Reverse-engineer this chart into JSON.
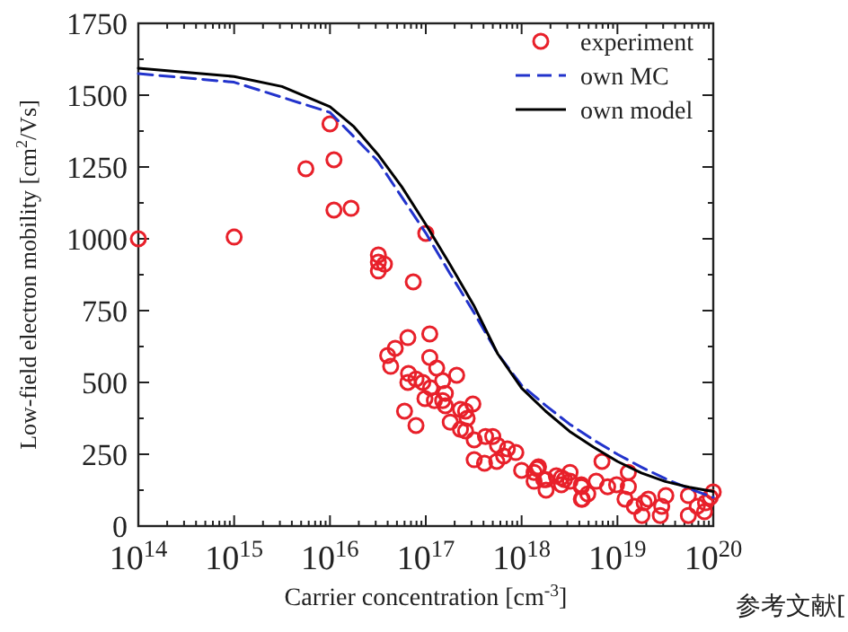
{
  "chart_data": {
    "type": "line",
    "xlabel": "Carrier concentration [cm$^{-3}$]",
    "ylabel": "Low-field electron mobility [cm$^{2}$/Vs]",
    "log": "x",
    "xlim": [
      100000000000000.0,
      1e+20
    ],
    "ylim": [
      0,
      1750
    ],
    "xticks": [
      {
        "value": 100000000000000.0,
        "label": "10$^{14}$"
      },
      {
        "value": 1000000000000000.0,
        "label": "10$^{15}$"
      },
      {
        "value": 1e+16,
        "label": "10$^{16}$"
      },
      {
        "value": 1e+17,
        "label": "10$^{17}$"
      },
      {
        "value": 1e+18,
        "label": "10$^{18}$"
      },
      {
        "value": 1e+19,
        "label": "10$^{19}$"
      },
      {
        "value": 1e+20,
        "label": "10$^{20}$"
      }
    ],
    "yticks": [
      0,
      250,
      500,
      750,
      1000,
      1250,
      1500,
      1750
    ],
    "legend": "top right",
    "grid": false,
    "annotations": [
      "参考文献["
    ],
    "series": [
      {
        "name": "experiment",
        "type": "scatter",
        "marker": "circle",
        "color": "#e8202a",
        "x": [
          100000000000000.0,
          1000000000000000.0,
          5600000000000000.0,
          1e+16,
          1.1e+16,
          1.1e+16,
          1.66e+16,
          1e+17,
          3.2e+16,
          3.2e+16,
          3.7e+16,
          3.2e+16,
          7.4e+16,
          1.1e+17,
          6.5e+16,
          4.8e+16,
          4e+16,
          4.3e+16,
          1.1e+17,
          1.3e+17,
          2.1e+17,
          6.6e+16,
          6.5e+16,
          7.9e+16,
          9.3e+16,
          1.12e+17,
          1.5e+17,
          9.8e+16,
          1.23e+17,
          1.5e+17,
          1.6e+17,
          1.6e+17,
          6e+16,
          7.9e+16,
          1.8e+17,
          2.3e+17,
          2.3e+17,
          3.1e+17,
          2.6e+17,
          2.7e+17,
          2.6e+17,
          3.2e+17,
          4.2e+17,
          5e+17,
          5.6e+17,
          7.1e+17,
          6.5e+17,
          5.5e+17,
          4.1e+17,
          3.2e+17,
          8.7e+17,
          1e+18,
          1.35e+18,
          1.45e+18,
          1.35e+18,
          1.8e+18,
          1.8e+18,
          2.6e+18,
          3.2e+18,
          3.2e+18,
          4.2e+18,
          4.9e+18,
          4.3e+18,
          6e+18,
          6.9e+18,
          2.6e+18,
          1.5e+18,
          1.7e+18,
          2.3e+18,
          2.8e+18,
          4.2e+18,
          4.2e+18,
          7.9e+18,
          9.8e+18,
          1.3e+19,
          1.3e+19,
          1.2e+19,
          1.5e+19,
          1.9e+19,
          2.1e+19,
          1.8e+19,
          2.9e+19,
          2.8e+19,
          3.2e+19,
          5.5e+19,
          5.5e+19,
          6.8e+19,
          8.1e+19,
          9.3e+19,
          1e+20,
          8.3e+19
        ],
        "values": [
          1000,
          1006,
          1244,
          1400,
          1275,
          1100,
          1106,
          1019,
          944,
          919,
          912,
          888,
          850,
          669,
          656,
          619,
          594,
          556,
          587,
          550,
          525,
          531,
          500,
          512,
          500,
          481,
          506,
          444,
          437,
          437,
          462,
          419,
          400,
          350,
          362,
          337,
          406,
          425,
          400,
          375,
          331,
          300,
          312,
          312,
          281,
          269,
          244,
          225,
          219,
          231,
          256,
          194,
          187,
          200,
          156,
          162,
          125,
          169,
          187,
          156,
          137,
          112,
          94,
          156,
          225,
          144,
          206,
          162,
          175,
          162,
          144,
          94,
          137,
          144,
          187,
          137,
          94,
          69,
          81,
          94,
          37,
          69,
          37,
          106,
          106,
          37,
          69,
          50,
          100,
          119,
          81
        ]
      },
      {
        "name": "own MC",
        "type": "line",
        "marker": "none",
        "line_style": "dashed",
        "color": "#2233cc",
        "x": [
          100000000000000.0,
          1000000000000000.0,
          1e+16,
          3.16e+16,
          1e+17,
          1.78e+17,
          3.16e+17,
          5.62e+17,
          1e+18,
          1.78e+18,
          3.16e+18,
          5.62e+18,
          1e+19,
          1.78e+19,
          3.16e+19,
          5.62e+19,
          1e+20
        ],
        "values": [
          1575,
          1545,
          1440,
          1270,
          1020,
          880,
          745,
          600,
          490,
          420,
          355,
          300,
          250,
          205,
          165,
          130,
          100
        ]
      },
      {
        "name": "own model",
        "type": "line",
        "marker": "none",
        "line_style": "solid",
        "color": "#000000",
        "x": [
          100000000000000.0,
          1000000000000000.0,
          3160000000000000.0,
          1e+16,
          1.78e+16,
          3.16e+16,
          5.62e+16,
          1e+17,
          1.78e+17,
          3.16e+17,
          5.62e+17,
          1e+18,
          1.78e+18,
          3.16e+18,
          5.62e+18,
          1e+19,
          1.78e+19,
          3.16e+19,
          5.62e+19,
          1e+20
        ],
        "values": [
          1594,
          1565,
          1530,
          1460,
          1390,
          1294,
          1181,
          1050,
          912,
          769,
          600,
          480,
          400,
          330,
          275,
          225,
          185,
          155,
          135,
          120
        ]
      }
    ]
  }
}
